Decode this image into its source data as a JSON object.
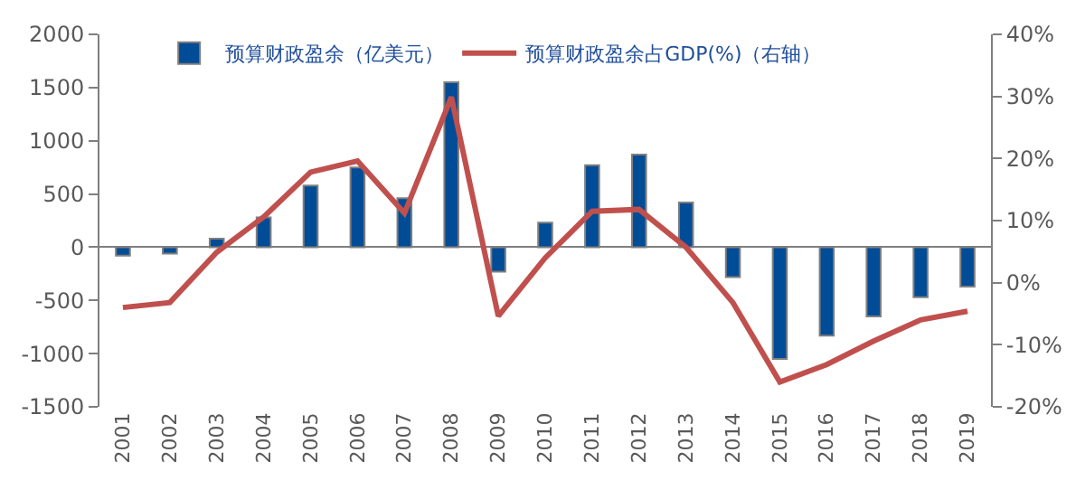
{
  "chart_data": {
    "type": "bar",
    "categories": [
      "2001",
      "2002",
      "2003",
      "2004",
      "2005",
      "2006",
      "2007",
      "2008",
      "2009",
      "2010",
      "2011",
      "2012",
      "2013",
      "2014",
      "2015",
      "2016",
      "2017",
      "2018",
      "2019"
    ],
    "series": [
      {
        "name": "预算财政盈余（亿美元）",
        "color": "#004c97",
        "values": [
          -80,
          -60,
          80,
          280,
          580,
          750,
          460,
          1550,
          -230,
          230,
          770,
          870,
          420,
          -280,
          -1050,
          -830,
          -650,
          -470,
          -370
        ]
      },
      {
        "name": "预算财政盈余占GDP(%)（右轴）",
        "color": "#c0504d",
        "type": "line",
        "axis": "y2",
        "values": [
          -4,
          -3.2,
          4.9,
          10.6,
          17.8,
          19.6,
          11.2,
          29.9,
          -5.4,
          4,
          11.5,
          11.8,
          5.7,
          -3.2,
          -16,
          -13.2,
          -9.4,
          -6,
          -4.6
        ]
      }
    ],
    "ylim": [
      -1500,
      2000
    ],
    "yticks": [
      -1500,
      -1000,
      -500,
      0,
      500,
      1000,
      1500,
      2000
    ],
    "y2lim": [
      -20,
      40
    ],
    "y2ticks": [
      {
        "value": -20,
        "label": "-20%"
      },
      {
        "value": -10,
        "label": "-10%"
      },
      {
        "value": 0,
        "label": "0%"
      },
      {
        "value": 10,
        "label": "10%"
      },
      {
        "value": 20,
        "label": "20%"
      },
      {
        "value": 30,
        "label": "30%"
      },
      {
        "value": 40,
        "label": "40%"
      }
    ],
    "legend": "top",
    "marker": "none",
    "line_style": "solid"
  }
}
